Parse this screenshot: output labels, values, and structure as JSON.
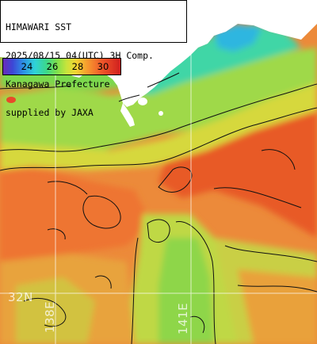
{
  "title": {
    "line1": "HIMAWARI SST",
    "line2": "2025/08/15 04(UTC) 3H Comp.",
    "line3": "Kanagawa Prefecture",
    "line4": "supplied by JAXA"
  },
  "colorbar": {
    "ticks": [
      "24",
      "26",
      "28",
      "30"
    ],
    "colors": [
      "#6a2bb8",
      "#3d47d6",
      "#2c8fe6",
      "#2fd2d8",
      "#3cd88a",
      "#7fe04c",
      "#c7e43c",
      "#f3d532",
      "#f79a2e",
      "#f0582a",
      "#d01e1e"
    ]
  },
  "grid_labels": {
    "lat": "32N",
    "lon_a": "138E",
    "lon_b": "141E"
  }
}
